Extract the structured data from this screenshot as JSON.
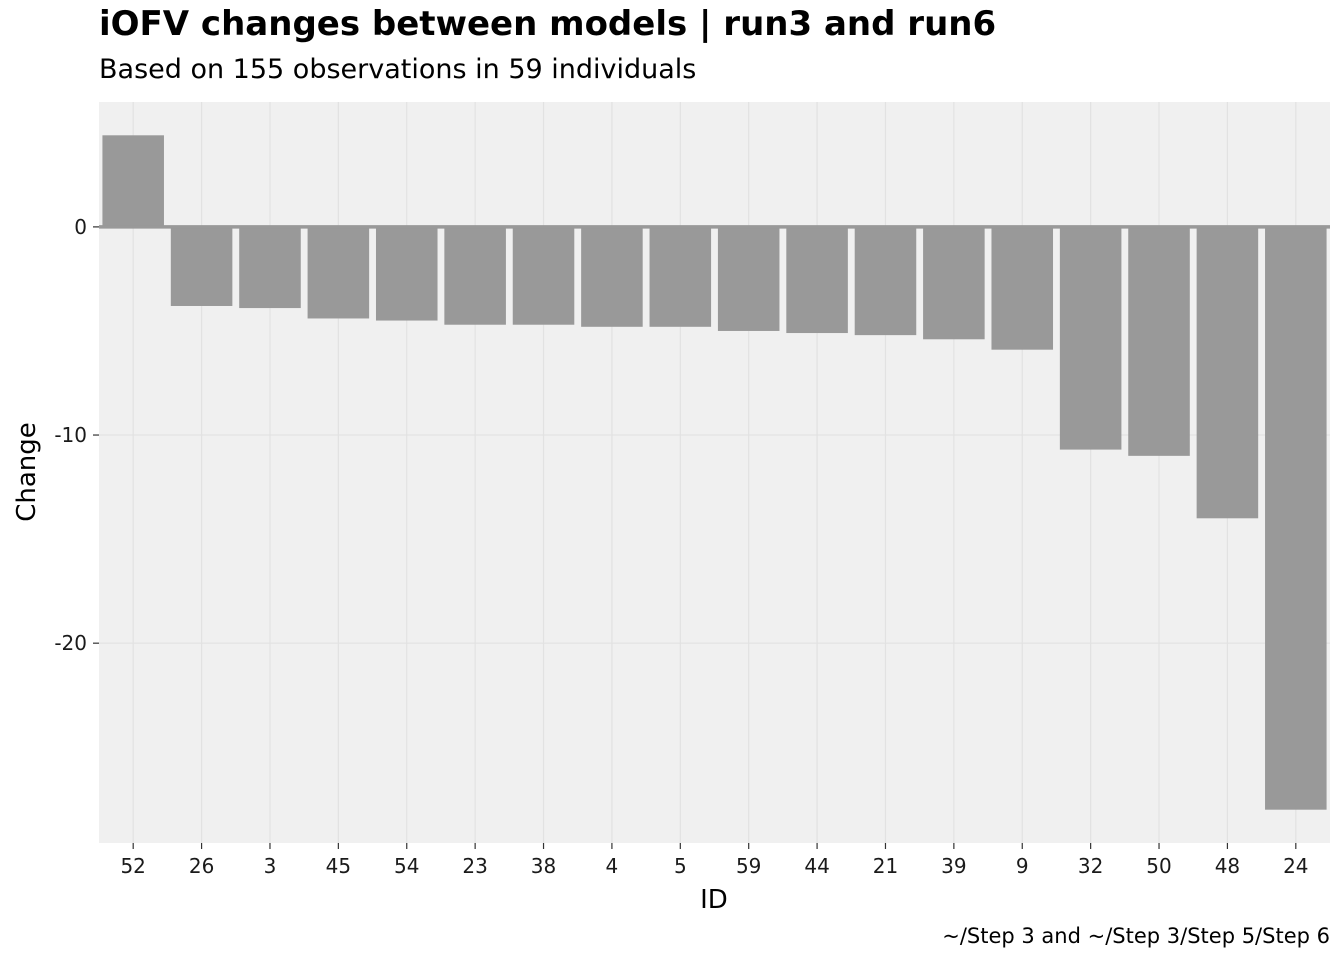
{
  "chart_data": {
    "type": "bar",
    "title": "iOFV changes between models | run3 and run6",
    "subtitle": "Based on 155 observations in 59 individuals",
    "caption": "~/Step 3 and ~/Step 3/Step 5/Step 6",
    "xlabel": "ID",
    "ylabel": "Change",
    "categories": [
      "52",
      "26",
      "3",
      "45",
      "54",
      "23",
      "38",
      "4",
      "5",
      "59",
      "44",
      "21",
      "39",
      "9",
      "32",
      "50",
      "48",
      "24"
    ],
    "values": [
      4.4,
      -3.8,
      -3.9,
      -4.4,
      -4.5,
      -4.7,
      -4.7,
      -4.8,
      -4.8,
      -5.0,
      -5.1,
      -5.2,
      -5.4,
      -5.9,
      -10.7,
      -11.0,
      -14.0,
      -28.0
    ],
    "ylim": [
      -29.6,
      6.0
    ],
    "yticks": [
      0,
      -10,
      -20
    ],
    "grid": true,
    "legend": "none",
    "colors": {
      "panel_background": "#f0f0f0",
      "bar": "#999999",
      "grid_major": "#e2e2e2",
      "zero_line": "#999999"
    }
  }
}
